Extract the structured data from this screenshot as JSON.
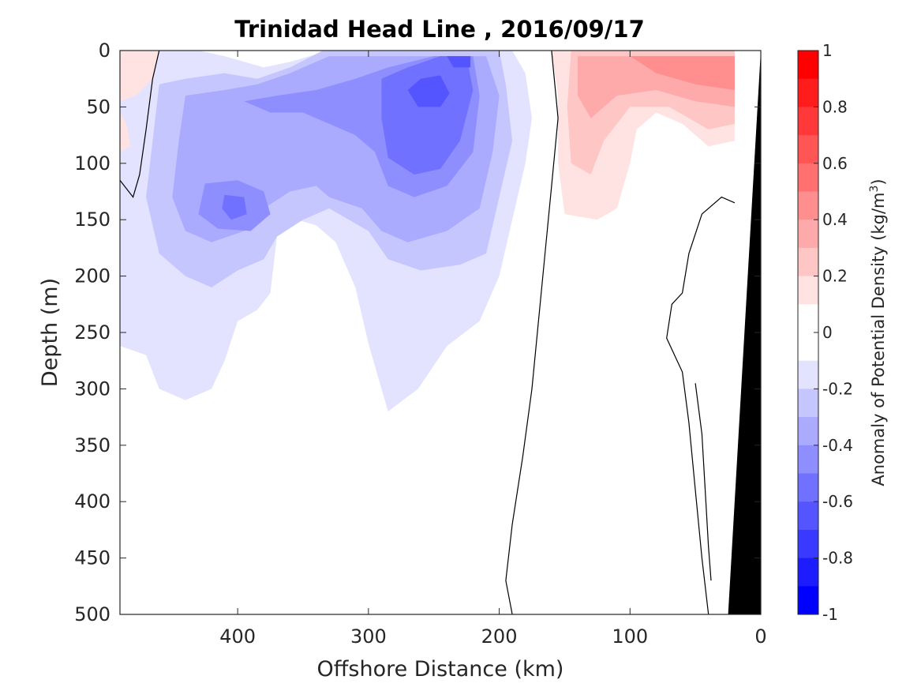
{
  "chart_data": {
    "type": "heatmap",
    "title": "Trinidad Head Line , 2016/09/17",
    "xlabel": "Offshore Distance (km)",
    "ylabel": "Depth (m)",
    "colorbar_label": "Anomaly of Potential Density (kg/m",
    "colorbar_label_sup": "3",
    "colorbar_label_close": ")",
    "xlim": [
      490,
      0
    ],
    "ylim": [
      0,
      500
    ],
    "y_reversed": true,
    "x_reversed": true,
    "x_ticks": [
      "400",
      "300",
      "200",
      "100",
      "0"
    ],
    "x_tick_values": [
      400,
      300,
      200,
      100,
      0
    ],
    "y_ticks": [
      "0",
      "50",
      "100",
      "150",
      "200",
      "250",
      "300",
      "350",
      "400",
      "450",
      "500"
    ],
    "y_tick_values": [
      0,
      50,
      100,
      150,
      200,
      250,
      300,
      350,
      400,
      450,
      500
    ],
    "colorbar_ticks": [
      "1",
      "0.8",
      "0.6",
      "0.4",
      "0.2",
      "0",
      "-0.2",
      "-0.4",
      "-0.6",
      "-0.8",
      "-1"
    ],
    "colorbar_tick_values": [
      1,
      0.8,
      0.6,
      0.4,
      0.2,
      0,
      -0.2,
      -0.4,
      -0.6,
      -0.8,
      -1
    ],
    "clim": [
      -1,
      1
    ],
    "contour_levels": [
      -1,
      -0.9,
      -0.8,
      -0.7,
      -0.6,
      -0.5,
      -0.4,
      -0.3,
      -0.2,
      -0.1,
      0.1,
      0.2,
      0.3,
      0.4,
      0.5,
      0.6,
      0.7,
      0.8,
      0.9,
      1
    ],
    "colorbar_colors": [
      "#ff0000",
      "#ff1c1c",
      "#ff3939",
      "#ff5555",
      "#ff7171",
      "#ff8e8e",
      "#ffaaaa",
      "#ffc6c6",
      "#ffe3e3",
      "#ffffff",
      "#ffffff",
      "#e3e3ff",
      "#c6c6ff",
      "#aaaaff",
      "#8e8eff",
      "#7171ff",
      "#5555ff",
      "#3939ff",
      "#1c1cff",
      "#0000ff"
    ],
    "regions": [
      {
        "name": "negative-anomaly-region",
        "level": -0.1,
        "color": "#e3e3ff",
        "points": [
          [
            490,
            0
          ],
          [
            430,
            0
          ],
          [
            410,
            5
          ],
          [
            380,
            15
          ],
          [
            360,
            10
          ],
          [
            330,
            0
          ],
          [
            190,
            0
          ],
          [
            180,
            20
          ],
          [
            175,
            60
          ],
          [
            180,
            100
          ],
          [
            190,
            150
          ],
          [
            200,
            200
          ],
          [
            215,
            240
          ],
          [
            240,
            262
          ],
          [
            262,
            300
          ],
          [
            285,
            320
          ],
          [
            300,
            260
          ],
          [
            310,
            210
          ],
          [
            325,
            170
          ],
          [
            340,
            155
          ],
          [
            355,
            150
          ],
          [
            370,
            165
          ],
          [
            375,
            215
          ],
          [
            385,
            230
          ],
          [
            400,
            240
          ],
          [
            410,
            275
          ],
          [
            420,
            300
          ],
          [
            440,
            310
          ],
          [
            460,
            300
          ],
          [
            470,
            270
          ],
          [
            490,
            262
          ]
        ]
      },
      {
        "name": "negative-anomaly-region",
        "level": -0.2,
        "color": "#c6c6ff",
        "points": [
          [
            460,
            30
          ],
          [
            440,
            25
          ],
          [
            410,
            20
          ],
          [
            385,
            25
          ],
          [
            360,
            15
          ],
          [
            335,
            0
          ],
          [
            200,
            0
          ],
          [
            195,
            30
          ],
          [
            190,
            80
          ],
          [
            200,
            130
          ],
          [
            210,
            180
          ],
          [
            230,
            190
          ],
          [
            260,
            195
          ],
          [
            285,
            185
          ],
          [
            300,
            160
          ],
          [
            330,
            140
          ],
          [
            350,
            150
          ],
          [
            370,
            165
          ],
          [
            380,
            185
          ],
          [
            400,
            195
          ],
          [
            420,
            210
          ],
          [
            440,
            200
          ],
          [
            460,
            180
          ],
          [
            470,
            130
          ],
          [
            465,
            80
          ]
        ]
      },
      {
        "name": "negative-anomaly-region",
        "level": -0.3,
        "color": "#aaaaff",
        "points": [
          [
            440,
            40
          ],
          [
            410,
            35
          ],
          [
            385,
            30
          ],
          [
            360,
            20
          ],
          [
            330,
            5
          ],
          [
            210,
            5
          ],
          [
            200,
            40
          ],
          [
            205,
            90
          ],
          [
            215,
            140
          ],
          [
            240,
            160
          ],
          [
            270,
            170
          ],
          [
            290,
            160
          ],
          [
            305,
            140
          ],
          [
            330,
            130
          ],
          [
            340,
            120
          ],
          [
            360,
            125
          ],
          [
            380,
            140
          ],
          [
            395,
            160
          ],
          [
            420,
            170
          ],
          [
            440,
            160
          ],
          [
            450,
            130
          ],
          [
            445,
            80
          ]
        ]
      },
      {
        "name": "negative-anomaly-region",
        "level": -0.4,
        "color": "#8e8eff",
        "points": [
          [
            395,
            45
          ],
          [
            370,
            40
          ],
          [
            340,
            35
          ],
          [
            310,
            25
          ],
          [
            285,
            15
          ],
          [
            250,
            5
          ],
          [
            220,
            5
          ],
          [
            215,
            40
          ],
          [
            220,
            90
          ],
          [
            240,
            120
          ],
          [
            265,
            130
          ],
          [
            285,
            120
          ],
          [
            295,
            90
          ],
          [
            310,
            75
          ],
          [
            330,
            65
          ],
          [
            350,
            55
          ],
          [
            375,
            55
          ]
        ]
      },
      {
        "name": "negative-anomaly-region",
        "level": -0.4,
        "color": "#8e8eff",
        "points": [
          [
            425,
            118
          ],
          [
            400,
            115
          ],
          [
            380,
            125
          ],
          [
            375,
            145
          ],
          [
            390,
            160
          ],
          [
            415,
            158
          ],
          [
            430,
            145
          ]
        ]
      },
      {
        "name": "negative-anomaly-region",
        "level": -0.5,
        "color": "#7171ff",
        "points": [
          [
            290,
            25
          ],
          [
            270,
            15
          ],
          [
            245,
            5
          ],
          [
            225,
            5
          ],
          [
            220,
            35
          ],
          [
            230,
            80
          ],
          [
            245,
            105
          ],
          [
            265,
            110
          ],
          [
            285,
            95
          ],
          [
            290,
            60
          ]
        ]
      },
      {
        "name": "negative-anomaly-region",
        "level": -0.5,
        "color": "#7171ff",
        "points": [
          [
            410,
            128
          ],
          [
            395,
            130
          ],
          [
            393,
            145
          ],
          [
            405,
            150
          ],
          [
            412,
            140
          ]
        ]
      },
      {
        "name": "negative-anomaly-region",
        "level": -0.6,
        "color": "#5555ff",
        "points": [
          [
            270,
            35
          ],
          [
            260,
            25
          ],
          [
            245,
            22
          ],
          [
            238,
            38
          ],
          [
            245,
            50
          ],
          [
            262,
            50
          ]
        ]
      },
      {
        "name": "negative-anomaly-region",
        "level": -0.6,
        "color": "#5555ff",
        "points": [
          [
            240,
            5
          ],
          [
            222,
            5
          ],
          [
            222,
            15
          ],
          [
            235,
            15
          ]
        ]
      },
      {
        "name": "positive-anomaly-region",
        "level": 0.1,
        "color": "#ffe3e3",
        "points": [
          [
            160,
            0
          ],
          [
            20,
            0
          ],
          [
            20,
            80
          ],
          [
            40,
            85
          ],
          [
            60,
            65
          ],
          [
            80,
            55
          ],
          [
            95,
            70
          ],
          [
            100,
            100
          ],
          [
            110,
            140
          ],
          [
            125,
            150
          ],
          [
            150,
            145
          ],
          [
            155,
            100
          ],
          [
            155,
            40
          ]
        ]
      },
      {
        "name": "positive-anomaly-region",
        "level": 0.2,
        "color": "#ffc6c6",
        "points": [
          [
            145,
            0
          ],
          [
            20,
            0
          ],
          [
            20,
            65
          ],
          [
            40,
            70
          ],
          [
            70,
            50
          ],
          [
            100,
            50
          ],
          [
            120,
            80
          ],
          [
            130,
            110
          ],
          [
            145,
            100
          ],
          [
            148,
            50
          ]
        ]
      },
      {
        "name": "positive-anomaly-region",
        "level": 0.3,
        "color": "#ffaaaa",
        "points": [
          [
            140,
            5
          ],
          [
            20,
            5
          ],
          [
            20,
            50
          ],
          [
            50,
            45
          ],
          [
            80,
            35
          ],
          [
            110,
            40
          ],
          [
            130,
            60
          ],
          [
            140,
            40
          ]
        ]
      },
      {
        "name": "positive-anomaly-region",
        "level": 0.4,
        "color": "#ff8e8e",
        "points": [
          [
            100,
            5
          ],
          [
            20,
            5
          ],
          [
            20,
            35
          ],
          [
            50,
            30
          ],
          [
            80,
            20
          ]
        ]
      },
      {
        "name": "positive-anomaly-region",
        "level": 0.1,
        "color": "#ffe3e3",
        "points": [
          [
            490,
            0
          ],
          [
            460,
            0
          ],
          [
            465,
            25
          ],
          [
            478,
            40
          ],
          [
            490,
            45
          ]
        ]
      },
      {
        "name": "positive-anomaly-region",
        "level": 0.1,
        "color": "#ffe3e3",
        "points": [
          [
            490,
            55
          ],
          [
            485,
            65
          ],
          [
            482,
            85
          ],
          [
            490,
            90
          ]
        ]
      }
    ],
    "zero_contours": [
      {
        "name": "zero-contour-line",
        "points": [
          [
            160,
            0
          ],
          [
            155,
            60
          ],
          [
            160,
            120
          ],
          [
            165,
            180
          ],
          [
            170,
            240
          ],
          [
            175,
            300
          ],
          [
            182,
            360
          ],
          [
            190,
            420
          ],
          [
            195,
            470
          ],
          [
            190,
            500
          ]
        ]
      },
      {
        "name": "zero-contour-line",
        "points": [
          [
            490,
            115
          ],
          [
            480,
            130
          ],
          [
            475,
            110
          ],
          [
            470,
            70
          ],
          [
            465,
            25
          ],
          [
            460,
            0
          ]
        ]
      },
      {
        "name": "zero-contour-line",
        "points": [
          [
            20,
            135
          ],
          [
            30,
            130
          ],
          [
            45,
            145
          ],
          [
            55,
            180
          ],
          [
            60,
            215
          ],
          [
            68,
            225
          ],
          [
            72,
            255
          ],
          [
            60,
            285
          ],
          [
            55,
            330
          ],
          [
            50,
            390
          ],
          [
            45,
            450
          ],
          [
            40,
            500
          ]
        ]
      },
      {
        "name": "zero-contour-line",
        "points": [
          [
            50,
            295
          ],
          [
            45,
            340
          ],
          [
            42,
            400
          ],
          [
            40,
            440
          ],
          [
            38,
            470
          ]
        ]
      }
    ],
    "bathymetry": {
      "name": "seafloor",
      "color": "#000000",
      "points": [
        [
          0,
          0
        ],
        [
          25,
          500
        ],
        [
          0,
          500
        ]
      ]
    }
  }
}
